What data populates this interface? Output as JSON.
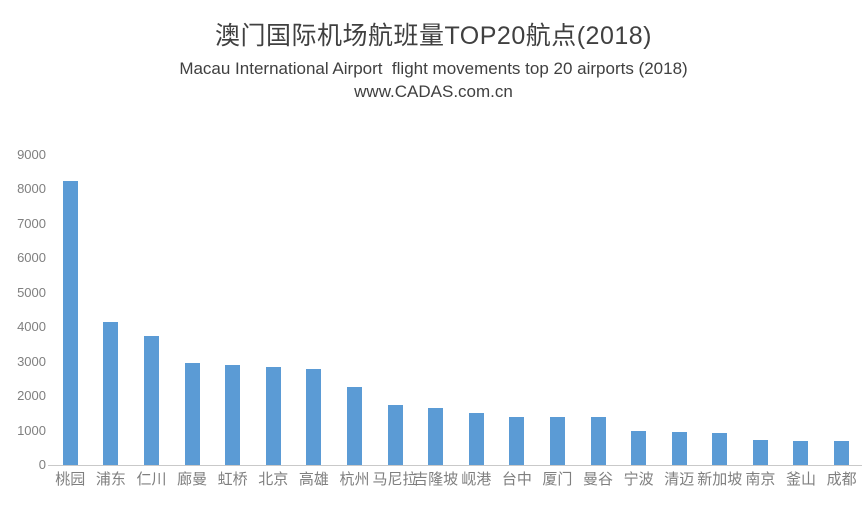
{
  "chart_data": {
    "type": "bar",
    "title": "澳门国际机场航班量TOP20航点(2018)",
    "subtitle": "Macau International Airport  flight movements top 20 airports (2018)",
    "source": "www.CADAS.com.cn",
    "categories": [
      "桃园",
      "浦东",
      "仁川",
      "廊曼",
      "虹桥",
      "北京",
      "高雄",
      "杭州",
      "马尼拉",
      "吉隆坡",
      "岘港",
      "台中",
      "厦门",
      "曼谷",
      "宁波",
      "清迈",
      "新加坡",
      "南京",
      "釜山",
      "成都"
    ],
    "values": [
      8250,
      4150,
      3750,
      2950,
      2900,
      2850,
      2800,
      2250,
      1750,
      1650,
      1500,
      1400,
      1380,
      1380,
      1000,
      950,
      930,
      730,
      710,
      700
    ],
    "xlabel": "",
    "ylabel": "",
    "ylim": [
      0,
      9000
    ],
    "yticks": [
      0,
      1000,
      2000,
      3000,
      4000,
      5000,
      6000,
      7000,
      8000,
      9000
    ],
    "grid": false,
    "legend": false,
    "bar_color": "#5B9BD5",
    "axis_line_color": "#C9C9C9",
    "tick_label_color": "#7F7F7F",
    "title_color": "#404040"
  }
}
